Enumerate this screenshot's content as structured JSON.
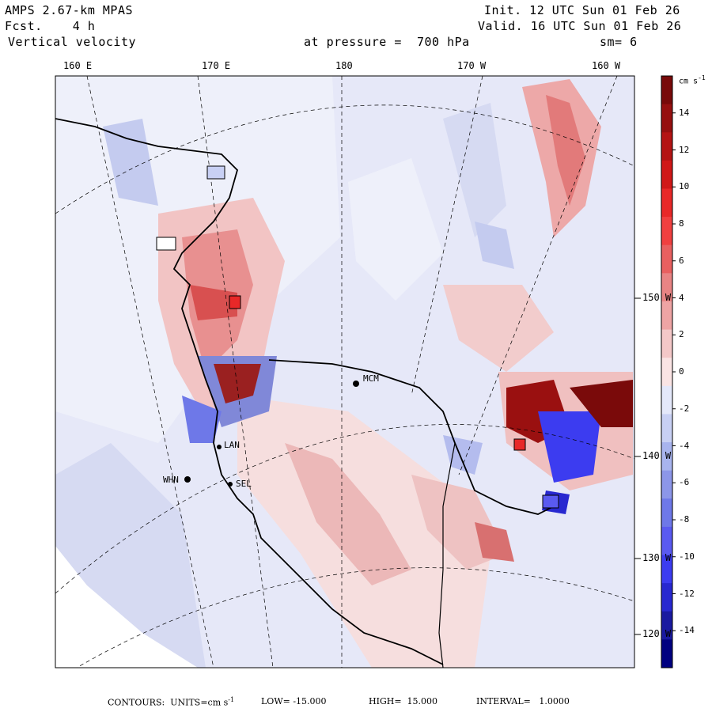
{
  "header": {
    "model": "AMPS 2.67-km MPAS",
    "forecast": "Fcst.    4 h",
    "field": "Vertical velocity",
    "init": "Init. 12 UTC Sun 01 Feb 26",
    "valid": "Valid. 16 UTC Sun 01 Feb 26",
    "level": "at pressure =  700 hPa",
    "smoothing": "sm= 6"
  },
  "longitude_labels": [
    "160 E",
    "170 E",
    "180",
    "170 W",
    "160 W"
  ],
  "latitude_labels": [
    "150 W",
    "140 W",
    "130 W",
    "120 W"
  ],
  "stations": [
    "MCM",
    "LAN",
    "WHN",
    "SEL"
  ],
  "colorbar": {
    "units": "cm s",
    "units_exp": "-1",
    "ticks": [
      "14",
      "12",
      "10",
      "8",
      "6",
      "4",
      "2",
      "0",
      "-2",
      "-4",
      "-6",
      "-8",
      "-10",
      "-12",
      "-14"
    ],
    "colors": [
      "#000080",
      "#1a1aa0",
      "#2828d0",
      "#3c3cf0",
      "#5a5af0",
      "#6e78e8",
      "#8c96e8",
      "#a8b4ee",
      "#c8d0f4",
      "#e4e8fa",
      "#fae4e4",
      "#f4c8c8",
      "#eea4a4",
      "#e88484",
      "#e86060",
      "#f04040",
      "#e82828",
      "#d01818",
      "#b41414",
      "#961010",
      "#780a0a"
    ]
  },
  "footer": {
    "label": "CONTOURS:  UNITS=cm s",
    "units_exp": "-1",
    "low": "LOW= -15.000",
    "high": "HIGH=  15.000",
    "interval": "INTERVAL=   1.0000"
  }
}
